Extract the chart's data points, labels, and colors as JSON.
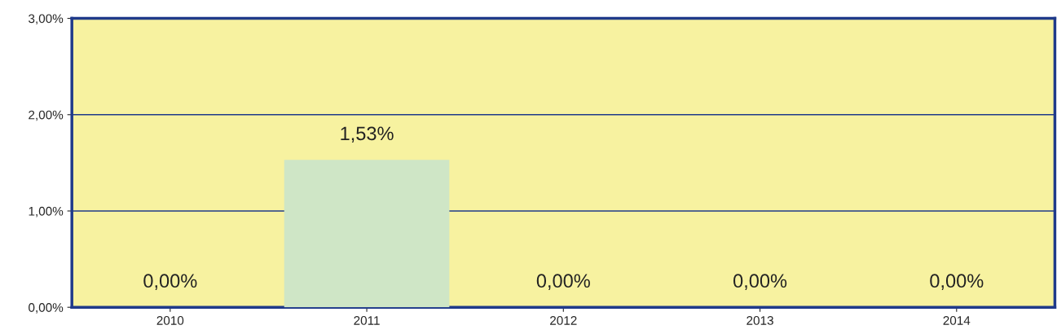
{
  "chart_data": {
    "type": "bar",
    "categories": [
      "2010",
      "2011",
      "2012",
      "2013",
      "2014"
    ],
    "values": [
      0,
      1.53,
      0,
      0,
      0
    ],
    "color": "#cfe6c6",
    "value_labels": [
      "0,00%",
      "1,53%",
      "0,00%",
      "0,00%",
      "0,00%"
    ],
    "ylim": [
      0,
      3
    ],
    "yticks": [
      {
        "value": 0,
        "label": "0,00%"
      },
      {
        "value": 1,
        "label": "1,00%"
      },
      {
        "value": 2,
        "label": "2,00%"
      },
      {
        "value": 3,
        "label": "3,00%"
      }
    ],
    "grid": "y",
    "legend": false
  }
}
